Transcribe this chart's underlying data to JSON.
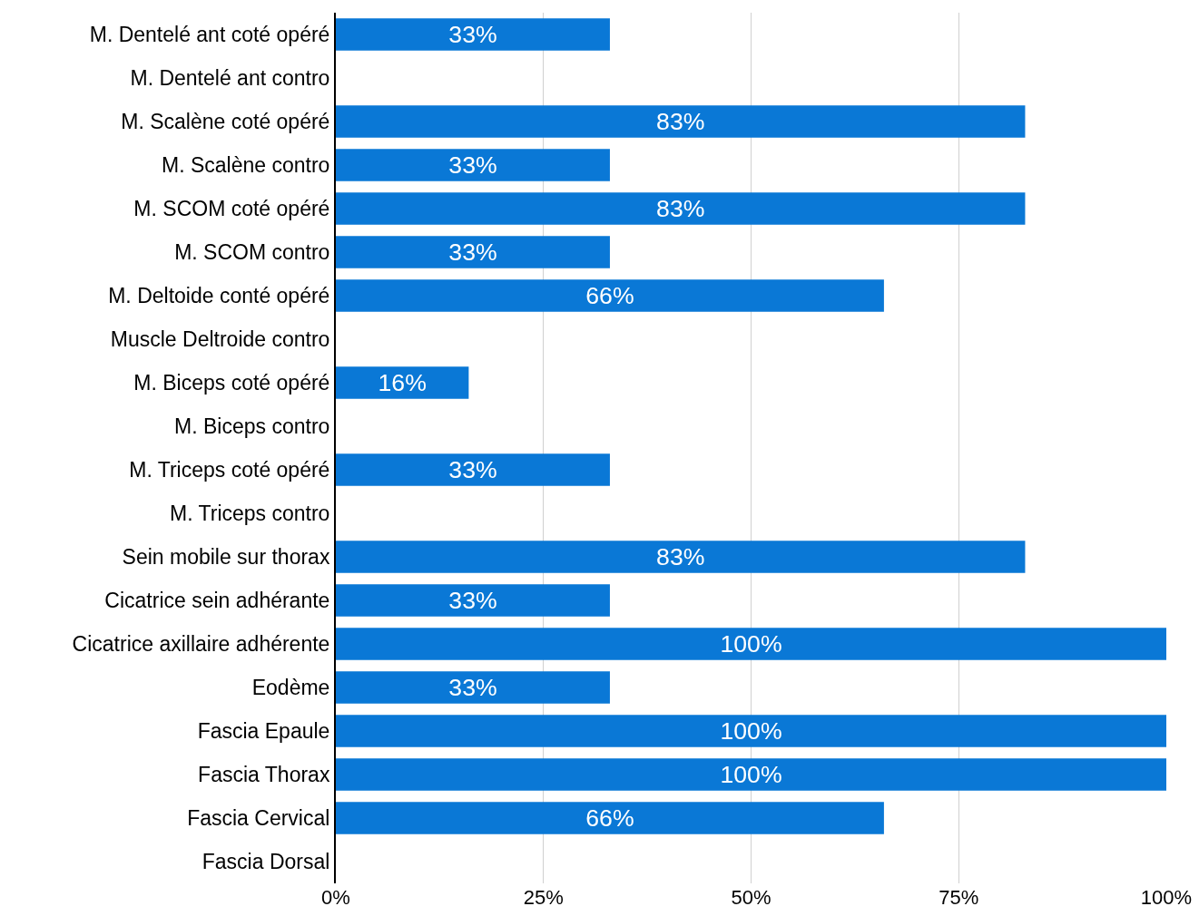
{
  "chart_data": {
    "type": "bar",
    "orientation": "horizontal",
    "categories": [
      "M. Dentelé ant coté opéré",
      "M. Dentelé ant contro",
      "M. Scalène coté opéré",
      "M. Scalène contro",
      "M. SCOM coté opéré",
      "M. SCOM contro",
      "M. Deltoide conté opéré",
      "Muscle Deltroide contro",
      "M. Biceps coté opéré",
      "M. Biceps contro",
      "M. Triceps coté opéré",
      "M. Triceps contro",
      "Sein mobile sur thorax",
      "Cicatrice sein adhérante",
      "Cicatrice axillaire adhérente",
      "Eodème",
      "Fascia Epaule",
      "Fascia Thorax",
      "Fascia Cervical",
      "Fascia Dorsal"
    ],
    "values": [
      33,
      null,
      83,
      33,
      83,
      33,
      66,
      null,
      16,
      null,
      33,
      null,
      83,
      33,
      100,
      33,
      100,
      100,
      66,
      null
    ],
    "value_labels": [
      "33%",
      null,
      "83%",
      "33%",
      "83%",
      "33%",
      "66%",
      null,
      "16%",
      null,
      "33%",
      null,
      "83%",
      "33%",
      "100%",
      "33%",
      "100%",
      "100%",
      "66%",
      null
    ],
    "color": "#0a78d6",
    "xlim": [
      0,
      100
    ],
    "xticks": [
      {
        "value": 0,
        "label": "0%"
      },
      {
        "value": 25,
        "label": "25%"
      },
      {
        "value": 50,
        "label": "50%"
      },
      {
        "value": 75,
        "label": "75%"
      },
      {
        "value": 100,
        "label": "100%"
      }
    ],
    "grid": "x"
  }
}
